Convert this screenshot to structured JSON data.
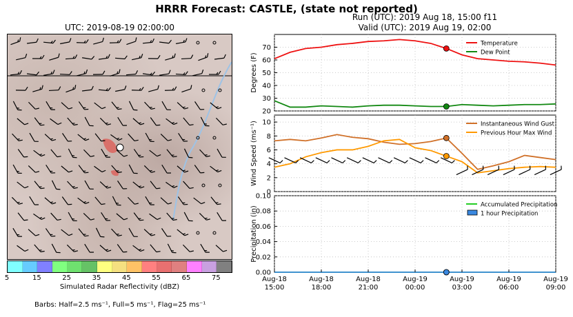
{
  "title": "HRRR Forecast: CASTLE, (state not reported)",
  "map": {
    "title": "UTC: 2019-08-19 02:00:00",
    "colorbar": {
      "label": "Simulated Radar Reflectivity (dBZ)",
      "ticks": [
        "5",
        "15",
        "25",
        "35",
        "45",
        "55",
        "65",
        "75"
      ],
      "colors": [
        "#80ffff",
        "#66ccff",
        "#8080ff",
        "#80ff80",
        "#6fe06f",
        "#66c266",
        "#ffff80",
        "#f5e080",
        "#ffc266",
        "#ff8080",
        "#e87070",
        "#e08080",
        "#ff80ff",
        "#c8a0e0",
        "#808080"
      ]
    },
    "barbs_note": "Barbs: Half=2.5 ms⁻¹, Full=5 ms⁻¹, Flag=25 ms⁻¹"
  },
  "header": {
    "run": "Run (UTC): 2019 Aug 18, 15:00 f11",
    "valid": "Valid (UTC): 2019 Aug 19, 02:00"
  },
  "chart_data": [
    {
      "type": "line",
      "ylabel": "Degrees (F)",
      "ylim": [
        20,
        80
      ],
      "yticks": [
        20,
        30,
        40,
        50,
        60,
        70
      ],
      "grid": true,
      "legend": "top-right",
      "x_hours": [
        0,
        1,
        2,
        3,
        4,
        5,
        6,
        7,
        8,
        9,
        10,
        11,
        12,
        13,
        14,
        15,
        16,
        17,
        18
      ],
      "series": [
        {
          "name": "Temperature",
          "color": "#ee1111",
          "values": [
            61,
            66,
            69,
            70,
            72,
            73,
            74.5,
            75,
            76,
            75,
            73,
            69,
            64,
            61,
            60,
            59,
            58.5,
            57.5,
            56
          ]
        },
        {
          "name": "Dew Point",
          "color": "#118811",
          "values": [
            28,
            23,
            23,
            24,
            23.5,
            23,
            24,
            24.5,
            24.5,
            24,
            23.5,
            23.5,
            25,
            24.5,
            24,
            24.5,
            25,
            25,
            25.5
          ]
        }
      ],
      "highlight_hour": 11
    },
    {
      "type": "line",
      "ylabel": "Wind Speed (ms⁻¹)",
      "ylim": [
        0,
        11
      ],
      "yticks": [
        0,
        2,
        4,
        6,
        8,
        10
      ],
      "grid": true,
      "legend": "top-right",
      "x_hours": [
        0,
        1,
        2,
        3,
        4,
        5,
        6,
        7,
        8,
        9,
        10,
        11,
        12,
        13,
        14,
        15,
        16,
        17,
        18
      ],
      "series": [
        {
          "name": "Instantaneous Wind Gust",
          "color": "#d07028",
          "values": [
            7.3,
            7.5,
            7.3,
            7.7,
            8.2,
            7.8,
            7.6,
            7.1,
            6.8,
            6.9,
            7.2,
            7.7,
            5.5,
            3.2,
            3.7,
            4.3,
            5.2,
            4.9,
            4.6
          ]
        },
        {
          "name": "Previous Hour Max Wind",
          "color": "#ff9900",
          "values": [
            3.5,
            4.0,
            5.0,
            5.6,
            6.0,
            6.0,
            6.5,
            7.3,
            7.5,
            6.3,
            5.9,
            5.1,
            4.3,
            2.7,
            3.0,
            3.3,
            3.5,
            3.6,
            3.5
          ]
        }
      ],
      "highlight_hour": 11
    },
    {
      "type": "line",
      "ylabel": "Precipitation (in)",
      "ylim": [
        0,
        0.1
      ],
      "yticks": [
        "0.00",
        "0.02",
        "0.04",
        "0.06",
        "0.08",
        "0.10"
      ],
      "grid": true,
      "legend": "top-right",
      "x_hours": [
        0,
        1,
        2,
        3,
        4,
        5,
        6,
        7,
        8,
        9,
        10,
        11,
        12,
        13,
        14,
        15,
        16,
        17,
        18
      ],
      "series": [
        {
          "name": "Accumulated Precipitation",
          "color": "#22cc22",
          "values": [
            0,
            0,
            0,
            0,
            0,
            0,
            0,
            0,
            0,
            0,
            0,
            0,
            0,
            0,
            0,
            0,
            0,
            0,
            0
          ]
        },
        {
          "name": "1 hour Precipitation",
          "color": "#3a88e0",
          "values": [
            0,
            0,
            0,
            0,
            0,
            0,
            0,
            0,
            0,
            0,
            0,
            0,
            0,
            0,
            0,
            0,
            0,
            0,
            0
          ]
        }
      ],
      "highlight_hour": 11,
      "xtick_hours": [
        0,
        3,
        6,
        9,
        12,
        15,
        18
      ],
      "xtick_labels": [
        [
          "Aug-18",
          "15:00"
        ],
        [
          "Aug-18",
          "18:00"
        ],
        [
          "Aug-18",
          "21:00"
        ],
        [
          "Aug-19",
          "00:00"
        ],
        [
          "Aug-19",
          "03:00"
        ],
        [
          "Aug-19",
          "06:00"
        ],
        [
          "Aug-19",
          "09:00"
        ]
      ]
    }
  ]
}
